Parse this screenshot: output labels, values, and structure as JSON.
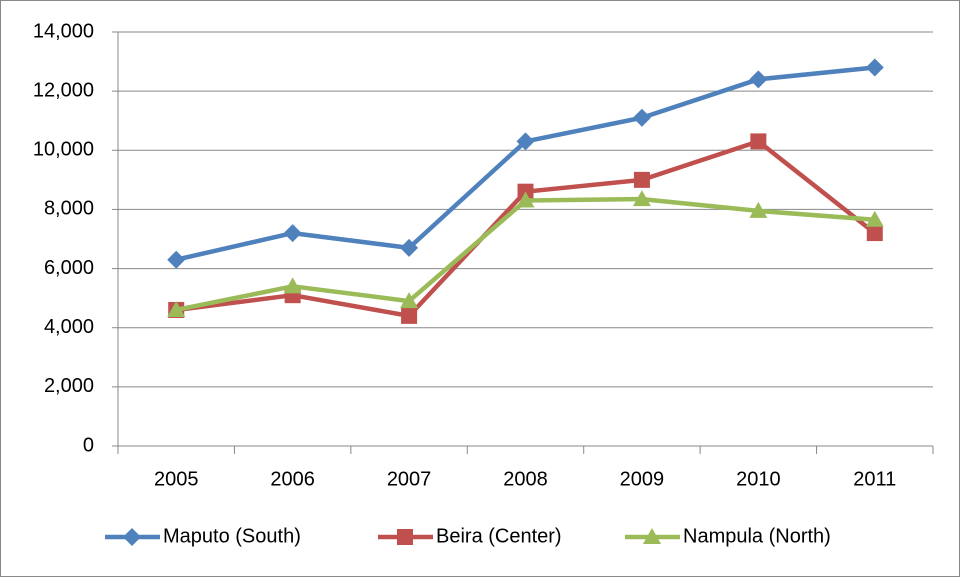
{
  "chart_data": {
    "type": "line",
    "categories": [
      "2005",
      "2006",
      "2007",
      "2008",
      "2009",
      "2010",
      "2011"
    ],
    "series": [
      {
        "name": "Maputo (South)",
        "color": "#4f81bd",
        "marker": "diamond",
        "values": [
          6300,
          7200,
          6700,
          10300,
          11100,
          12400,
          12800
        ]
      },
      {
        "name": "Beira (Center)",
        "color": "#c0504d",
        "marker": "square",
        "values": [
          4600,
          5100,
          4400,
          8600,
          9000,
          10300,
          7200
        ]
      },
      {
        "name": "Nampula (North)",
        "color": "#9bbb59",
        "marker": "triangle",
        "values": [
          4600,
          5400,
          4900,
          8300,
          8350,
          7950,
          7650
        ]
      }
    ],
    "ylim": [
      0,
      14000
    ],
    "yticks": [
      0,
      {
        "value": 2000,
        "label": "2,000"
      },
      {
        "value": 4000,
        "label": "4,000"
      },
      {
        "value": 6000,
        "label": "6,000"
      },
      {
        "value": 8000,
        "label": "8,000"
      },
      {
        "value": 10000,
        "label": "10,000"
      },
      {
        "value": 12000,
        "label": "12,000"
      },
      {
        "value": 14000,
        "label": "14,000"
      }
    ],
    "grid": true,
    "legend": "bottom"
  }
}
